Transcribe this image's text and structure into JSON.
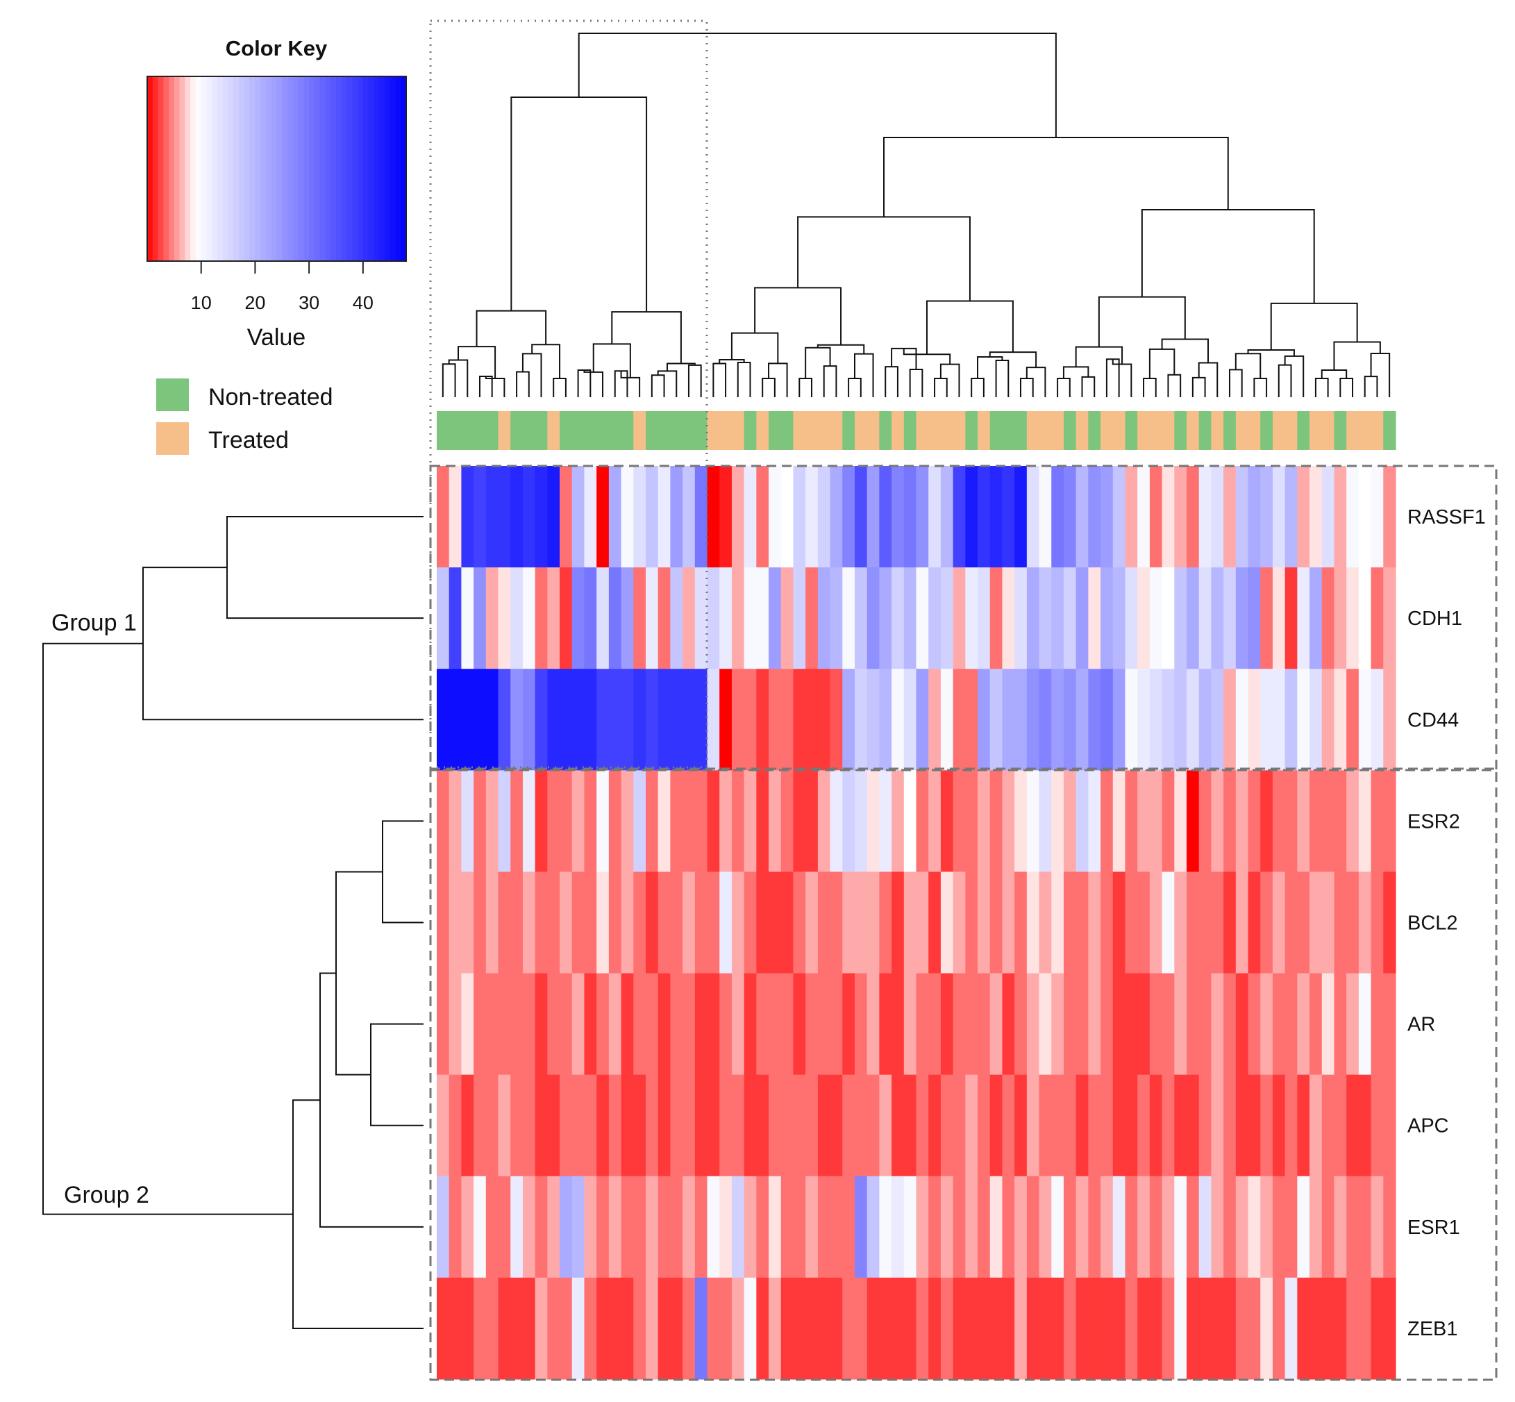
{
  "chart_data": {
    "type": "heatmap",
    "title": "",
    "color_key": {
      "title": "Color Key",
      "xlabel": "Value",
      "ticks": [
        10,
        20,
        30,
        40
      ],
      "range": [
        0,
        48
      ],
      "low_color": "#ff0000",
      "mid_color": "#ffffff",
      "high_color": "#0000ff",
      "mid_value": 9
    },
    "legend": [
      {
        "label": "Non-treated",
        "color": "#7dc47d"
      },
      {
        "label": "Treated",
        "color": "#f6bf8a"
      }
    ],
    "rows": [
      "RASSF1",
      "CDH1",
      "CD44",
      "ESR2",
      "BCL2",
      "AR",
      "APC",
      "ESR1",
      "ZEB1"
    ],
    "row_groups": [
      {
        "label": "Group 1",
        "rows": [
          "RASSF1",
          "CDH1",
          "CD44"
        ]
      },
      {
        "label": "Group 2",
        "rows": [
          "ESR2",
          "BCL2",
          "AR",
          "APC",
          "ESR1",
          "ZEB1"
        ]
      }
    ],
    "column_treatment": [
      0,
      0,
      0,
      0,
      0,
      1,
      0,
      0,
      0,
      1,
      0,
      0,
      0,
      0,
      0,
      0,
      1,
      0,
      0,
      0,
      0,
      0,
      1,
      1,
      1,
      0,
      1,
      0,
      0,
      1,
      1,
      1,
      1,
      0,
      1,
      1,
      0,
      1,
      0,
      1,
      1,
      1,
      1,
      0,
      1,
      0,
      0,
      0,
      1,
      1,
      1,
      0,
      1,
      0,
      1,
      1,
      0,
      1,
      1,
      1,
      0,
      1,
      0,
      1,
      0,
      1,
      1,
      0,
      1,
      1,
      0,
      1,
      1,
      0,
      1,
      1,
      1,
      0
    ],
    "values": [
      [
        4,
        8,
        40,
        38,
        40,
        40,
        42,
        40,
        42,
        44,
        4,
        20,
        12,
        0,
        22,
        10,
        14,
        18,
        12,
        24,
        18,
        30,
        0,
        1,
        6,
        12,
        4,
        10,
        9,
        16,
        12,
        16,
        22,
        28,
        36,
        24,
        34,
        28,
        30,
        26,
        14,
        20,
        38,
        44,
        40,
        42,
        40,
        44,
        14,
        10,
        30,
        28,
        20,
        26,
        24,
        18,
        6,
        10,
        4,
        8,
        6,
        4,
        12,
        14,
        6,
        18,
        22,
        20,
        14,
        20,
        6,
        8,
        14,
        6,
        10,
        9,
        10,
        5
      ],
      [
        18,
        38,
        10,
        26,
        6,
        8,
        14,
        10,
        4,
        6,
        2,
        28,
        30,
        14,
        30,
        24,
        4,
        12,
        4,
        18,
        6,
        14,
        16,
        12,
        6,
        10,
        10,
        24,
        6,
        16,
        4,
        22,
        20,
        10,
        18,
        26,
        22,
        16,
        20,
        10,
        18,
        16,
        6,
        12,
        14,
        4,
        8,
        14,
        22,
        18,
        20,
        16,
        24,
        8,
        22,
        20,
        14,
        8,
        10,
        9,
        18,
        22,
        14,
        20,
        16,
        24,
        26,
        4,
        8,
        2,
        12,
        22,
        4,
        6,
        8,
        9,
        4,
        6
      ],
      [
        46,
        46,
        46,
        46,
        46,
        36,
        26,
        28,
        38,
        42,
        42,
        42,
        42,
        38,
        38,
        38,
        40,
        38,
        40,
        40,
        40,
        40,
        14,
        0,
        4,
        4,
        2,
        4,
        4,
        2,
        2,
        2,
        3,
        22,
        16,
        18,
        20,
        10,
        14,
        24,
        6,
        10,
        4,
        4,
        24,
        18,
        22,
        22,
        26,
        28,
        24,
        26,
        22,
        28,
        30,
        24,
        10,
        12,
        14,
        16,
        18,
        14,
        20,
        18,
        6,
        10,
        8,
        12,
        12,
        18,
        10,
        14,
        6,
        8,
        4,
        10,
        12,
        6
      ],
      [
        4,
        6,
        14,
        4,
        6,
        16,
        4,
        12,
        2,
        4,
        4,
        6,
        4,
        10,
        4,
        6,
        16,
        4,
        8,
        4,
        4,
        4,
        2,
        6,
        4,
        6,
        2,
        6,
        4,
        2,
        2,
        6,
        12,
        16,
        14,
        8,
        12,
        6,
        9,
        4,
        6,
        2,
        4,
        4,
        6,
        4,
        6,
        8,
        10,
        14,
        8,
        6,
        16,
        12,
        4,
        8,
        4,
        6,
        6,
        4,
        8,
        0,
        4,
        6,
        4,
        6,
        4,
        2,
        4,
        4,
        6,
        4,
        4,
        4,
        6,
        8,
        4,
        4
      ],
      [
        4,
        6,
        6,
        4,
        6,
        4,
        4,
        6,
        4,
        4,
        6,
        4,
        4,
        8,
        4,
        6,
        4,
        2,
        4,
        4,
        6,
        4,
        4,
        12,
        6,
        4,
        2,
        2,
        2,
        4,
        6,
        4,
        4,
        6,
        6,
        6,
        4,
        2,
        6,
        6,
        2,
        8,
        6,
        4,
        6,
        4,
        6,
        4,
        8,
        6,
        8,
        4,
        4,
        6,
        4,
        2,
        4,
        4,
        6,
        10,
        6,
        4,
        4,
        4,
        2,
        6,
        2,
        4,
        6,
        4,
        4,
        6,
        6,
        4,
        4,
        6,
        4,
        2
      ],
      [
        4,
        6,
        8,
        4,
        4,
        4,
        4,
        4,
        2,
        4,
        4,
        6,
        2,
        4,
        6,
        2,
        4,
        4,
        2,
        4,
        4,
        2,
        2,
        4,
        6,
        2,
        4,
        4,
        4,
        2,
        4,
        4,
        4,
        2,
        4,
        6,
        2,
        2,
        6,
        4,
        4,
        2,
        4,
        4,
        4,
        6,
        2,
        4,
        6,
        8,
        6,
        4,
        4,
        6,
        4,
        2,
        2,
        2,
        4,
        4,
        6,
        4,
        4,
        6,
        4,
        2,
        4,
        6,
        4,
        4,
        6,
        4,
        8,
        4,
        6,
        10,
        4,
        4
      ],
      [
        6,
        4,
        2,
        4,
        4,
        6,
        4,
        4,
        2,
        2,
        4,
        4,
        4,
        2,
        4,
        2,
        2,
        4,
        2,
        4,
        4,
        2,
        2,
        4,
        4,
        2,
        2,
        4,
        4,
        4,
        4,
        2,
        2,
        4,
        4,
        4,
        6,
        2,
        2,
        4,
        2,
        4,
        4,
        6,
        4,
        2,
        4,
        2,
        6,
        4,
        4,
        4,
        2,
        4,
        4,
        2,
        2,
        4,
        2,
        4,
        2,
        2,
        4,
        6,
        4,
        2,
        2,
        4,
        2,
        4,
        2,
        6,
        4,
        4,
        2,
        2,
        4,
        4
      ],
      [
        18,
        4,
        6,
        10,
        4,
        4,
        12,
        6,
        4,
        6,
        22,
        20,
        6,
        4,
        6,
        4,
        4,
        6,
        4,
        4,
        6,
        4,
        10,
        8,
        16,
        6,
        4,
        8,
        4,
        4,
        6,
        4,
        4,
        4,
        28,
        18,
        10,
        12,
        10,
        6,
        4,
        6,
        4,
        6,
        4,
        8,
        4,
        6,
        4,
        6,
        10,
        4,
        6,
        4,
        6,
        12,
        4,
        6,
        4,
        6,
        10,
        4,
        14,
        6,
        4,
        6,
        8,
        6,
        4,
        4,
        10,
        6,
        4,
        6,
        4,
        4,
        6,
        4
      ],
      [
        2,
        2,
        2,
        4,
        4,
        2,
        2,
        2,
        6,
        4,
        4,
        12,
        4,
        2,
        2,
        2,
        4,
        6,
        2,
        2,
        4,
        30,
        4,
        4,
        6,
        10,
        2,
        6,
        2,
        2,
        2,
        2,
        2,
        4,
        4,
        2,
        2,
        2,
        2,
        4,
        2,
        4,
        2,
        2,
        2,
        2,
        2,
        6,
        2,
        2,
        2,
        4,
        2,
        2,
        2,
        2,
        4,
        2,
        2,
        4,
        10,
        2,
        2,
        2,
        2,
        4,
        4,
        8,
        4,
        12,
        2,
        2,
        2,
        2,
        4,
        4,
        2,
        2
      ]
    ]
  }
}
